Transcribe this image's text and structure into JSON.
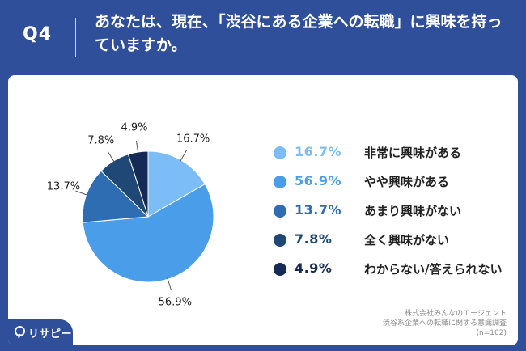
{
  "header": {
    "question_number": "Q4",
    "question_text": "あなたは、現在、「渋谷にある企業への転職」に興味を持っていますか。"
  },
  "chart_data": {
    "type": "pie",
    "unit": "%",
    "slices": [
      {
        "label": "非常に興味がある",
        "value": 16.7,
        "value_label": "16.7%",
        "color": "#7dbdf7"
      },
      {
        "label": "やや興味がある",
        "value": 56.9,
        "value_label": "56.9%",
        "color": "#4a9de9"
      },
      {
        "label": "あまり興味がない",
        "value": 13.7,
        "value_label": "13.7%",
        "color": "#2f6db3"
      },
      {
        "label": "全く興味がない",
        "value": 7.8,
        "value_label": "7.8%",
        "color": "#204877"
      },
      {
        "label": "わからない/答えられない",
        "value": 4.9,
        "value_label": "4.9%",
        "color": "#152b55"
      }
    ],
    "legend_position": "right"
  },
  "source": {
    "company": "株式会社みんなのエージェント",
    "survey": "渋谷系企業への転職に関する意識調査",
    "sample": "(n=102)"
  },
  "logo": {
    "text": "リサピー",
    "icon": "magnifier-icon"
  }
}
